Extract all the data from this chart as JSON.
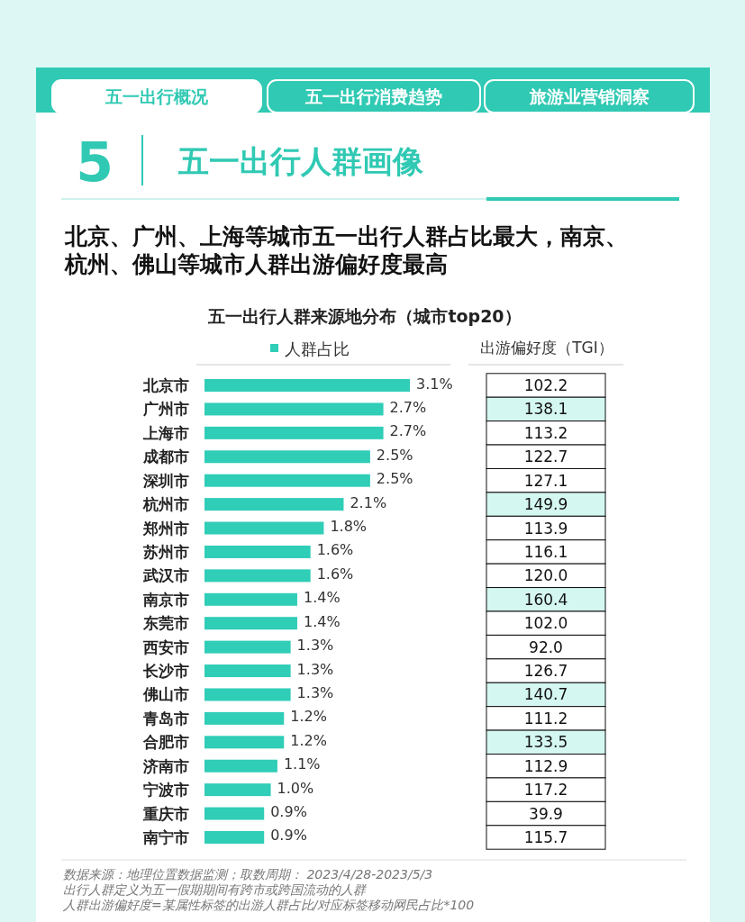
{
  "chart_data": [
    {
      "type": "bar",
      "orientation": "horizontal",
      "title": "北京、广州、上海等城市五一出行人群占比最大，南京、杭州、佛山等城市人群出游偏好度最高",
      "subtitle": "五一出行人群来源地分布（城市top20）",
      "categories": [
        "北京市",
        "广州市",
        "上海市",
        "成都市",
        "深圳市",
        "杭州市",
        "郑州市",
        "苏州市",
        "武汉市",
        "南京市",
        "东莞市",
        "西安市",
        "长沙市",
        "佛山市",
        "青岛市",
        "合肥市",
        "济南市",
        "宁波市",
        "重庆市",
        "南宁市"
      ],
      "series": [
        {
          "name": "人群占比",
          "color": "#30cdb7",
          "values": [
            3.1,
            2.7,
            2.7,
            2.5,
            2.5,
            2.1,
            1.8,
            1.6,
            1.6,
            1.4,
            1.4,
            1.3,
            1.3,
            1.3,
            1.2,
            1.2,
            1.1,
            1.0,
            0.9,
            0.9
          ],
          "value_labels": [
            "3.1%",
            "2.7%",
            "2.7%",
            "2.5%",
            "2.5%",
            "2.1%",
            "1.8%",
            "1.6%",
            "1.6%",
            "1.4%",
            "1.4%",
            "1.3%",
            "1.3%",
            "1.3%",
            "1.2%",
            "1.2%",
            "1.1%",
            "1.0%",
            "0.9%",
            "0.9%"
          ]
        }
      ],
      "legend": "top",
      "annotations": [
        "五一出行概况",
        "五一出行消费趋势",
        "旅游业营销洞察",
        "5",
        "五一出行人群画像",
        "数据来源：地理位置数据监测；取数周期： 2023/4/28-2023/5/3",
        "出行人群定义为五一假期期间有跨市或跨国流动的人群",
        "人群出游偏好度=某属性标签的出游人群占比/对应标签移动网民占比*100"
      ]
    },
    {
      "type": "other",
      "title": "出游偏好度（TGI）",
      "values": [
        102.2,
        138.1,
        113.2,
        122.7,
        127.1,
        149.9,
        113.9,
        116.1,
        120.0,
        160.4,
        102.0,
        92.0,
        126.7,
        140.7,
        111.2,
        133.5,
        112.9,
        117.2,
        39.9,
        115.7
      ],
      "colors": [
        "#ffffff",
        "#d4f7f1",
        "#ffffff",
        "#ffffff",
        "#ffffff",
        "#d4f7f1",
        "#ffffff",
        "#ffffff",
        "#ffffff",
        "#d4f7f1",
        "#ffffff",
        "#ffffff",
        "#ffffff",
        "#d4f7f1",
        "#ffffff",
        "#d4f7f1",
        "#ffffff",
        "#ffffff",
        "#ffffff",
        "#ffffff"
      ],
      "value_labels": [
        "102.2",
        "138.1",
        "113.2",
        "122.7",
        "127.1",
        "149.9",
        "113.9",
        "116.1",
        "120.0",
        "160.4",
        "102.0",
        "92.0",
        "126.7",
        "140.7",
        "111.2",
        "133.5",
        "112.9",
        "117.2",
        "39.9",
        "115.7"
      ]
    }
  ]
}
